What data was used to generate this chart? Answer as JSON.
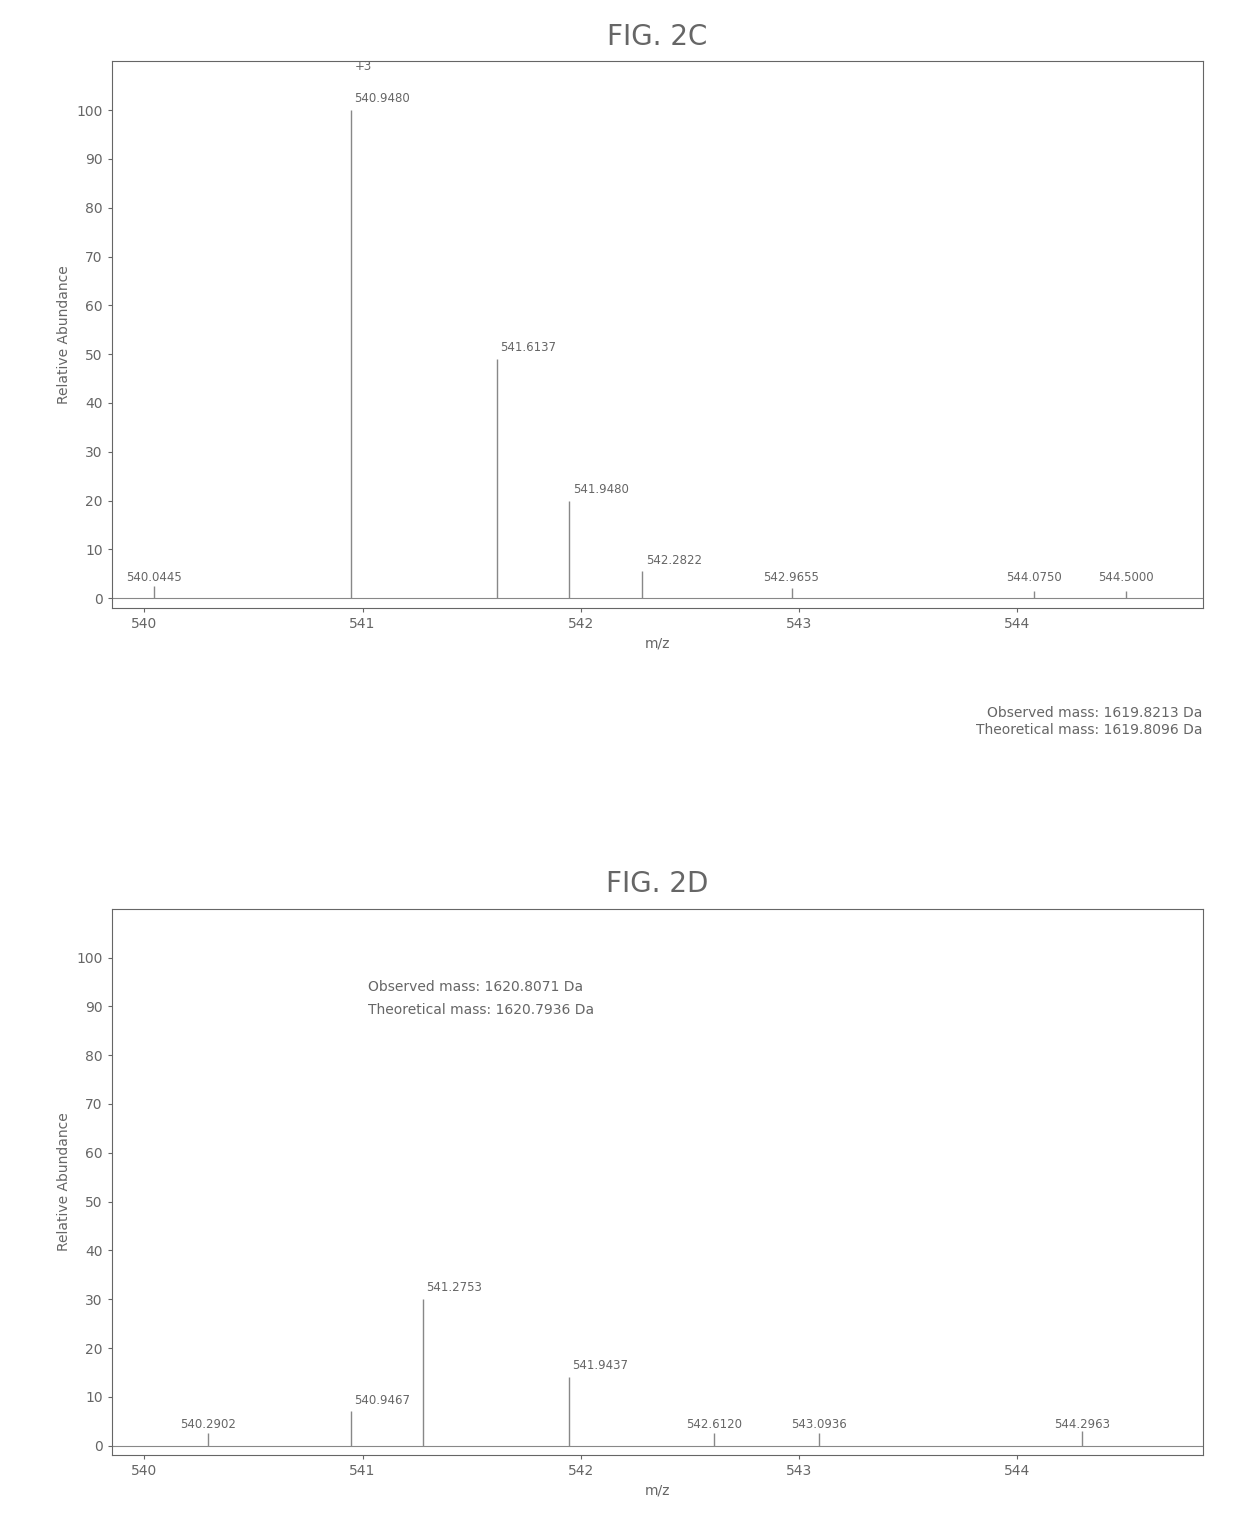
{
  "fig_title_top": "FIG. 2C",
  "fig_title_bottom": "FIG. 2D",
  "top": {
    "peaks": [
      {
        "mz": 540.0445,
        "intensity": 2.5,
        "label": "540.0445",
        "label_above": false
      },
      {
        "mz": 540.948,
        "intensity": 100.0,
        "label": "540.9480",
        "label_above": true,
        "extra_label": "+3"
      },
      {
        "mz": 541.6137,
        "intensity": 49.0,
        "label": "541.6137",
        "label_above": true
      },
      {
        "mz": 541.948,
        "intensity": 20.0,
        "label": "541.9480",
        "label_above": true
      },
      {
        "mz": 542.2822,
        "intensity": 5.5,
        "label": "542.2822",
        "label_above": true
      },
      {
        "mz": 542.9655,
        "intensity": 2.0,
        "label": "542.9655",
        "label_above": false
      },
      {
        "mz": 544.075,
        "intensity": 1.5,
        "label": "544.0750",
        "label_above": false
      },
      {
        "mz": 544.5,
        "intensity": 1.5,
        "label": "544.5000",
        "label_above": false
      }
    ],
    "xlim": [
      539.85,
      544.85
    ],
    "ylim": [
      -2,
      110
    ],
    "xlabel": "m/z",
    "ylabel": "Relative Abundance",
    "xticks": [
      540,
      541,
      542,
      543,
      544
    ],
    "yticks": [
      0,
      10,
      20,
      30,
      40,
      50,
      60,
      70,
      80,
      90,
      100
    ],
    "obs_mass": "Observed mass: 1619.8213 Da",
    "theo_mass": "Theoretical mass: 1619.8096 Da"
  },
  "bottom": {
    "peaks": [
      {
        "mz": 540.2902,
        "intensity": 2.5,
        "label": "540.2902",
        "label_above": false
      },
      {
        "mz": 540.9467,
        "intensity": 7.0,
        "label": "540.9467",
        "label_above": true
      },
      {
        "mz": 541.2753,
        "intensity": 30.0,
        "label": "541.2753",
        "label_above": true
      },
      {
        "mz": 541.9437,
        "intensity": 14.0,
        "label": "541.9437",
        "label_above": true
      },
      {
        "mz": 542.612,
        "intensity": 2.5,
        "label": "542.6120",
        "label_above": false
      },
      {
        "mz": 543.0936,
        "intensity": 2.5,
        "label": "543.0936",
        "label_above": false
      },
      {
        "mz": 544.2963,
        "intensity": 3.0,
        "label": "544.2963",
        "label_above": false
      }
    ],
    "xlim": [
      539.85,
      544.85
    ],
    "ylim": [
      -2,
      110
    ],
    "xlabel": "m/z",
    "ylabel": "Relative Abundance",
    "xticks": [
      540,
      541,
      542,
      543,
      544
    ],
    "yticks": [
      0,
      10,
      20,
      30,
      40,
      50,
      60,
      70,
      80,
      90,
      100
    ],
    "obs_mass": "Observed mass: 1620.8071 Da",
    "theo_mass": "Theoretical mass: 1620.7936 Da"
  },
  "line_color": "#888888",
  "text_color": "#666666",
  "bg_color": "#ffffff",
  "axis_fontsize": 10,
  "tick_fontsize": 10,
  "label_fontsize": 8.5,
  "title_fontsize": 20,
  "mass_fontsize": 10
}
